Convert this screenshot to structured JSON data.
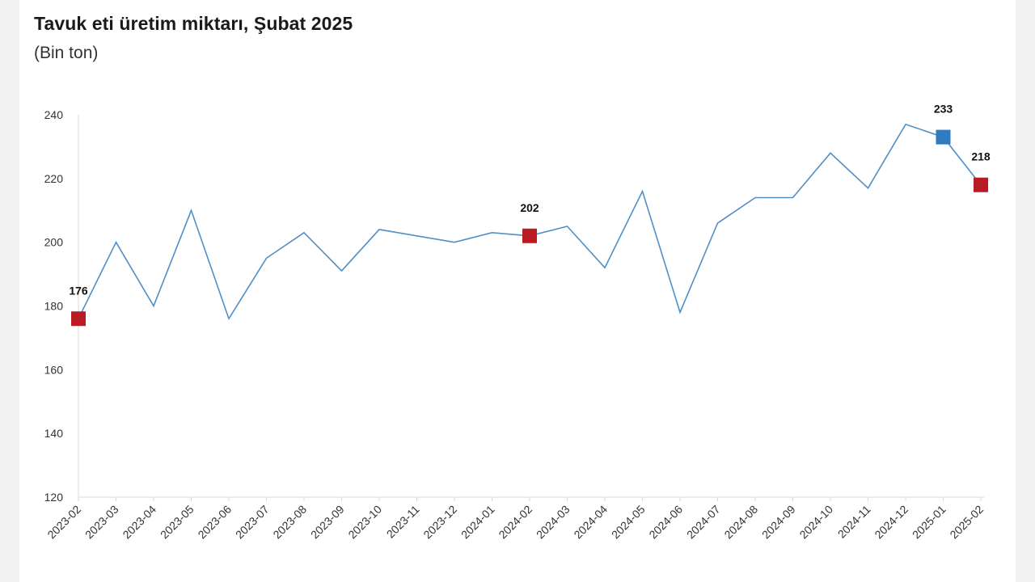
{
  "chart_data": {
    "type": "line",
    "title": "Tavuk eti üretim miktarı, Şubat 2025",
    "subtitle": "(Bin ton)",
    "xlabel": "",
    "ylabel": "",
    "ylim": [
      120,
      240
    ],
    "yticks": [
      120,
      140,
      160,
      180,
      200,
      220,
      240
    ],
    "grid": false,
    "legend": "none",
    "line_color": "#4f8fc7",
    "categories": [
      "2023-02",
      "2023-03",
      "2023-04",
      "2023-05",
      "2023-06",
      "2023-07",
      "2023-08",
      "2023-09",
      "2023-10",
      "2023-11",
      "2023-12",
      "2024-01",
      "2024-02",
      "2024-03",
      "2024-04",
      "2024-05",
      "2024-06",
      "2024-07",
      "2024-08",
      "2024-09",
      "2024-10",
      "2024-11",
      "2024-12",
      "2025-01",
      "2025-02"
    ],
    "values": [
      176,
      200,
      180,
      210,
      176,
      195,
      203,
      191,
      204,
      202,
      200,
      203,
      202,
      205,
      192,
      216,
      178,
      206,
      214,
      214,
      228,
      217,
      237,
      233,
      218
    ],
    "highlights": [
      {
        "category": "2023-02",
        "value": 176,
        "label": "176",
        "color": "#b81c22"
      },
      {
        "category": "2024-02",
        "value": 202,
        "label": "202",
        "color": "#b81c22"
      },
      {
        "category": "2025-01",
        "value": 233,
        "label": "233",
        "color": "#2e7bbf"
      },
      {
        "category": "2025-02",
        "value": 218,
        "label": "218",
        "color": "#b81c22"
      }
    ]
  }
}
